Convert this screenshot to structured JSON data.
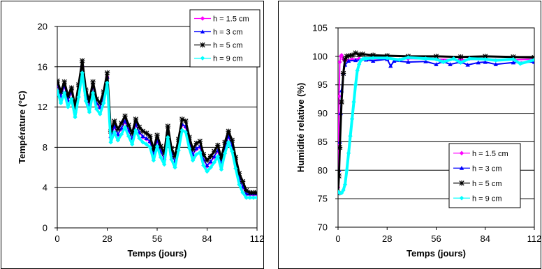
{
  "chart_data": [
    {
      "type": "line",
      "xlabel": "Temps (jours)",
      "ylabel": "Température (°C)",
      "xlim": [
        0,
        112
      ],
      "ylim": [
        0,
        20
      ],
      "xticks": [
        "0",
        "28",
        "56",
        "84",
        "112"
      ],
      "yticks": [
        "0",
        "4",
        "8",
        "12",
        "16",
        "20"
      ],
      "grid": "horizontal",
      "legend_position": "top-right",
      "series": [
        {
          "name": "h = 1.5 cm",
          "color": "#ff00ff",
          "marker": "diamond",
          "width": 1,
          "x": [
            0,
            2,
            4,
            6,
            8,
            10,
            12,
            14,
            16,
            18,
            20,
            22,
            24,
            26,
            28,
            30,
            32,
            34,
            36,
            38,
            40,
            42,
            44,
            46,
            48,
            50,
            52,
            54,
            56,
            58,
            60,
            62,
            64,
            66,
            68,
            70,
            72,
            74,
            76,
            78,
            80,
            82,
            84,
            86,
            88,
            90,
            92,
            94,
            96,
            98,
            100,
            102,
            104,
            106,
            108,
            110,
            112
          ],
          "y": [
            14.2,
            13.0,
            14.0,
            12.6,
            13.4,
            11.5,
            13.6,
            16.0,
            13.2,
            12.1,
            14.0,
            12.3,
            11.9,
            13.0,
            15.0,
            9.0,
            10.0,
            9.2,
            9.8,
            10.5,
            9.6,
            8.8,
            10.2,
            9.4,
            9.0,
            8.8,
            8.5,
            7.2,
            8.6,
            7.5,
            6.8,
            9.5,
            7.3,
            6.5,
            8.2,
            10.2,
            10.0,
            8.4,
            7.2,
            7.8,
            8.0,
            6.7,
            6.1,
            6.5,
            7.0,
            7.6,
            6.3,
            7.9,
            9.0,
            8.1,
            6.4,
            4.8,
            4.0,
            3.3,
            3.3,
            3.3,
            3.3
          ]
        },
        {
          "name": "h = 3 cm",
          "color": "#0000ff",
          "marker": "triangle",
          "width": 1.5,
          "x": [
            0,
            2,
            4,
            6,
            8,
            10,
            12,
            14,
            16,
            18,
            20,
            22,
            24,
            26,
            28,
            30,
            32,
            34,
            36,
            38,
            40,
            42,
            44,
            46,
            48,
            50,
            52,
            54,
            56,
            58,
            60,
            62,
            64,
            66,
            68,
            70,
            72,
            74,
            76,
            78,
            80,
            82,
            84,
            86,
            88,
            90,
            92,
            94,
            96,
            98,
            100,
            102,
            104,
            106,
            108,
            110,
            112
          ],
          "y": [
            14.3,
            13.1,
            14.1,
            12.7,
            13.5,
            11.6,
            13.8,
            16.2,
            13.3,
            12.2,
            14.1,
            12.4,
            12.0,
            13.1,
            15.0,
            9.1,
            10.1,
            9.3,
            9.9,
            10.6,
            9.7,
            8.9,
            10.3,
            9.5,
            9.1,
            8.9,
            8.6,
            7.3,
            8.7,
            7.6,
            6.9,
            9.6,
            7.4,
            6.6,
            8.3,
            10.3,
            10.1,
            8.5,
            7.3,
            7.9,
            8.1,
            6.8,
            6.2,
            6.6,
            7.1,
            7.7,
            6.4,
            8.0,
            9.1,
            8.2,
            6.5,
            4.9,
            4.1,
            3.4,
            3.4,
            3.4,
            3.4
          ]
        },
        {
          "name": "h = 5 cm",
          "color": "#000000",
          "marker": "star",
          "width": 3.2,
          "x": [
            0,
            2,
            4,
            6,
            8,
            10,
            12,
            14,
            16,
            18,
            20,
            22,
            24,
            26,
            28,
            30,
            32,
            34,
            36,
            38,
            40,
            42,
            44,
            46,
            48,
            50,
            52,
            54,
            56,
            58,
            60,
            62,
            64,
            66,
            68,
            70,
            72,
            74,
            76,
            78,
            80,
            82,
            84,
            86,
            88,
            90,
            92,
            94,
            96,
            98,
            100,
            102,
            104,
            106,
            108,
            110,
            112
          ],
          "y": [
            14.6,
            13.5,
            14.5,
            13.1,
            13.9,
            12.0,
            14.2,
            16.6,
            13.7,
            12.6,
            14.5,
            12.8,
            12.4,
            13.5,
            15.4,
            9.6,
            10.6,
            9.8,
            10.4,
            11.1,
            10.2,
            9.4,
            10.8,
            10.0,
            9.6,
            9.4,
            9.1,
            7.8,
            9.2,
            8.1,
            7.4,
            10.1,
            7.9,
            7.1,
            8.8,
            10.8,
            10.6,
            9.0,
            7.8,
            8.4,
            8.6,
            7.3,
            6.7,
            7.1,
            7.6,
            8.2,
            6.9,
            8.5,
            9.6,
            8.7,
            7.0,
            5.4,
            4.6,
            3.7,
            3.5,
            3.5,
            3.5
          ]
        },
        {
          "name": "h = 9 cm",
          "color": "#00ffff",
          "marker": "diamond",
          "width": 3.6,
          "x": [
            0,
            2,
            4,
            6,
            8,
            10,
            12,
            14,
            16,
            18,
            20,
            22,
            24,
            26,
            28,
            30,
            32,
            34,
            36,
            38,
            40,
            42,
            44,
            46,
            48,
            50,
            52,
            54,
            56,
            58,
            60,
            62,
            64,
            66,
            68,
            70,
            72,
            74,
            76,
            78,
            80,
            82,
            84,
            86,
            88,
            90,
            92,
            94,
            96,
            98,
            100,
            102,
            104,
            106,
            108,
            110,
            112
          ],
          "y": [
            13.6,
            12.4,
            13.4,
            12.0,
            12.8,
            11.0,
            13.0,
            15.4,
            12.6,
            11.5,
            13.4,
            11.8,
            11.3,
            12.4,
            14.4,
            8.5,
            9.5,
            8.7,
            9.3,
            10.0,
            9.1,
            8.3,
            9.7,
            8.9,
            8.5,
            8.3,
            8.0,
            6.7,
            8.1,
            7.0,
            6.3,
            9.0,
            6.8,
            6.0,
            7.7,
            9.7,
            9.5,
            7.9,
            6.7,
            7.3,
            7.5,
            6.2,
            5.6,
            6.0,
            6.5,
            7.1,
            5.8,
            7.4,
            8.5,
            7.6,
            5.9,
            4.3,
            3.5,
            3.0,
            3.0,
            3.0,
            3.0
          ]
        }
      ]
    },
    {
      "type": "line",
      "xlabel": "Temps (jours)",
      "ylabel": "Humidité relative (%)",
      "xlim": [
        0,
        112
      ],
      "ylim": [
        70,
        105
      ],
      "xticks": [
        "0",
        "28",
        "56",
        "84",
        "112"
      ],
      "yticks": [
        "70",
        "75",
        "80",
        "85",
        "90",
        "95",
        "100",
        "105"
      ],
      "grid": "horizontal",
      "legend_position": "bottom-right",
      "series": [
        {
          "name": "h = 1.5 cm",
          "color": "#ff00ff",
          "marker": "diamond",
          "width": 2,
          "x": [
            0,
            0.3,
            0.6,
            1,
            1.5,
            2,
            3,
            5,
            8,
            12,
            20,
            28,
            40,
            56,
            70,
            84,
            100,
            112
          ],
          "y": [
            77,
            85,
            93,
            99,
            100,
            100.2,
            99.5,
            99.3,
            99.5,
            99.6,
            99.4,
            99.5,
            99.6,
            99.5,
            99.4,
            99.5,
            99.4,
            99.5
          ]
        },
        {
          "name": "h = 3 cm",
          "color": "#0000ff",
          "marker": "triangle",
          "width": 2,
          "x": [
            0,
            0.5,
            1,
            1.5,
            2,
            3,
            4,
            6,
            10,
            16,
            20,
            28,
            30,
            32,
            40,
            50,
            56,
            60,
            64,
            70,
            74,
            80,
            84,
            90,
            100,
            112
          ],
          "y": [
            76,
            80,
            85,
            90,
            94,
            97,
            98.5,
            99.2,
            99.3,
            99.4,
            99.2,
            99.5,
            98.3,
            99.2,
            99.0,
            99.1,
            98.6,
            99.1,
            98.6,
            99.0,
            98.5,
            98.9,
            99.0,
            98.6,
            98.9,
            99.0
          ]
        },
        {
          "name": "h = 5 cm",
          "color": "#000000",
          "marker": "star",
          "width": 3,
          "x": [
            0,
            0.5,
            1,
            2,
            3,
            4,
            5,
            6,
            8,
            10,
            12,
            14,
            20,
            28,
            40,
            56,
            70,
            84,
            100,
            112
          ],
          "y": [
            76,
            79,
            84,
            92,
            97,
            99.5,
            100,
            100.1,
            100.2,
            100.6,
            100.3,
            100.4,
            100.2,
            100.1,
            100,
            100,
            99.9,
            100,
            99.9,
            99.8
          ]
        },
        {
          "name": "h = 9 cm",
          "color": "#00ffff",
          "marker": "diamond",
          "width": 4,
          "x": [
            0,
            1,
            2,
            3,
            4,
            5,
            6,
            7,
            8,
            9,
            10,
            11,
            12,
            13,
            14,
            15,
            16,
            20,
            28,
            35,
            40,
            50,
            56,
            60,
            66,
            70,
            75,
            84,
            90,
            100,
            104,
            112
          ],
          "y": [
            76.2,
            76,
            76,
            76.5,
            77.5,
            80,
            83,
            86,
            89,
            92,
            95,
            97.5,
            98.6,
            99.3,
            99.5,
            99.6,
            99.6,
            99.7,
            99.7,
            99.4,
            99.8,
            99.6,
            99.5,
            99.0,
            99.6,
            98.9,
            99.6,
            99.5,
            99.3,
            99.5,
            98.7,
            99.4
          ]
        }
      ]
    }
  ]
}
